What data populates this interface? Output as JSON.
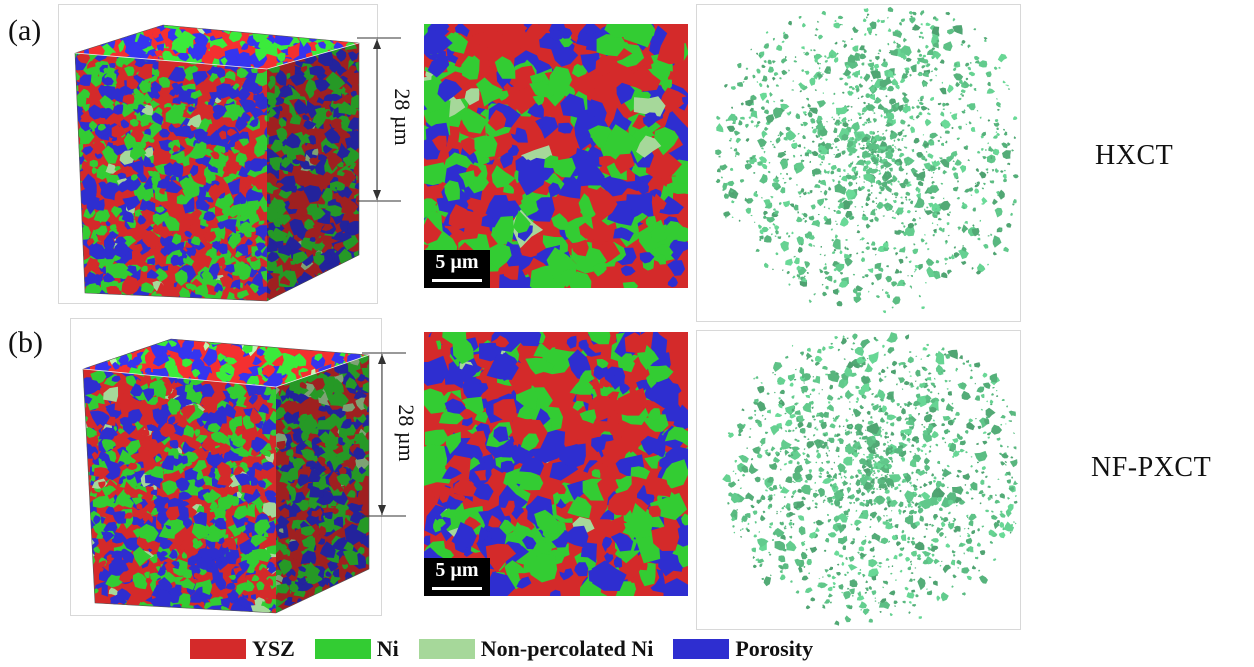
{
  "panels": [
    {
      "letter": "(a)",
      "dimension": "28 µm",
      "scale": "5 µm",
      "technique": "HXCT"
    },
    {
      "letter": "(b)",
      "dimension": "28 µm",
      "scale": "5 µm",
      "technique": "NF-PXCT"
    }
  ],
  "legend": [
    {
      "label": "YSZ",
      "color": "#d42a2a"
    },
    {
      "label": "Ni",
      "color": "#33cc33"
    },
    {
      "label": "Non-percolated Ni",
      "color": "#a6d89a"
    },
    {
      "label": "Porosity",
      "color": "#2e2ed0"
    }
  ],
  "colors": {
    "ysz": "#d42a2a",
    "ni": "#33cc33",
    "nonperc": "#a6d89a",
    "pore": "#2e2ed0",
    "render3d": "#5fc488"
  }
}
